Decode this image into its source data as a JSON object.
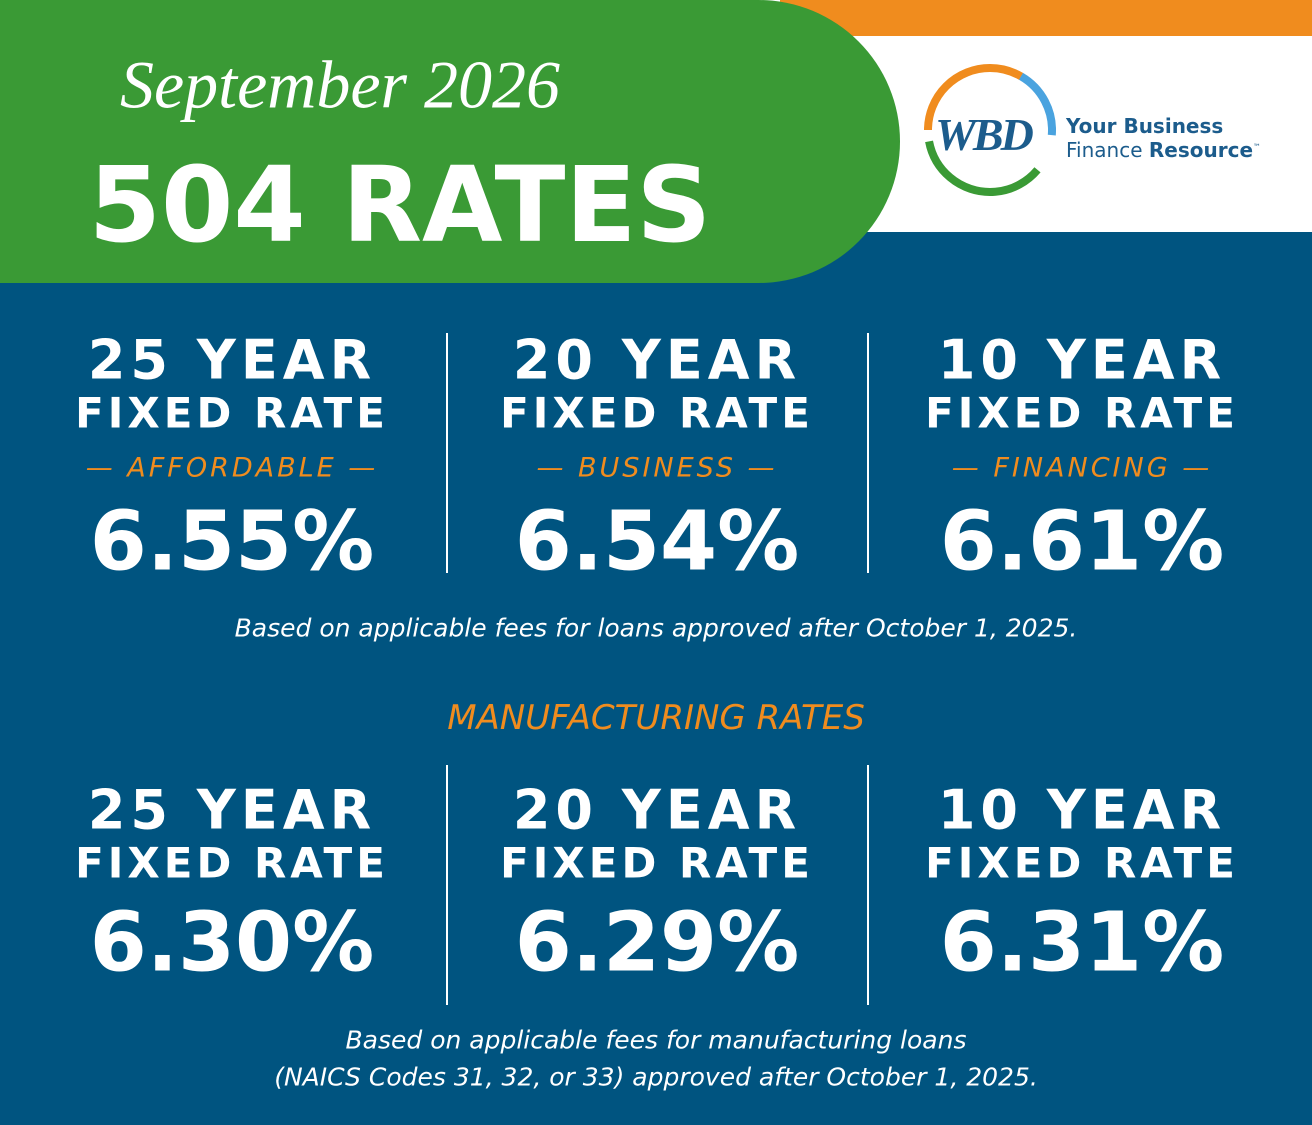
{
  "header": {
    "month": "September 2026",
    "title": "504 RATES"
  },
  "logo": {
    "mark": "WBD",
    "line1": "Your Business",
    "line2a": "Finance",
    "line2b": "Resource",
    "tm": "™"
  },
  "standard": {
    "columns": [
      {
        "term": "25 YEAR",
        "kind": "FIXED RATE",
        "tagline": "— AFFORDABLE —",
        "rate": "6.55%"
      },
      {
        "term": "20 YEAR",
        "kind": "FIXED RATE",
        "tagline": "— BUSINESS —",
        "rate": "6.54%"
      },
      {
        "term": "10 YEAR",
        "kind": "FIXED RATE",
        "tagline": "— FINANCING —",
        "rate": "6.61%"
      }
    ],
    "note": "Based on applicable fees for loans approved after October 1, 2025."
  },
  "manufacturing": {
    "heading": "MANUFACTURING RATES",
    "columns": [
      {
        "term": "25 YEAR",
        "kind": "FIXED RATE",
        "rate": "6.30%"
      },
      {
        "term": "20 YEAR",
        "kind": "FIXED RATE",
        "rate": "6.29%"
      },
      {
        "term": "10 YEAR",
        "kind": "FIXED RATE",
        "rate": "6.31%"
      }
    ],
    "note": [
      "Based on applicable fees for manufacturing loans",
      "(NAICS Codes 31, 32, or 33) approved after October 1, 2025."
    ]
  }
}
